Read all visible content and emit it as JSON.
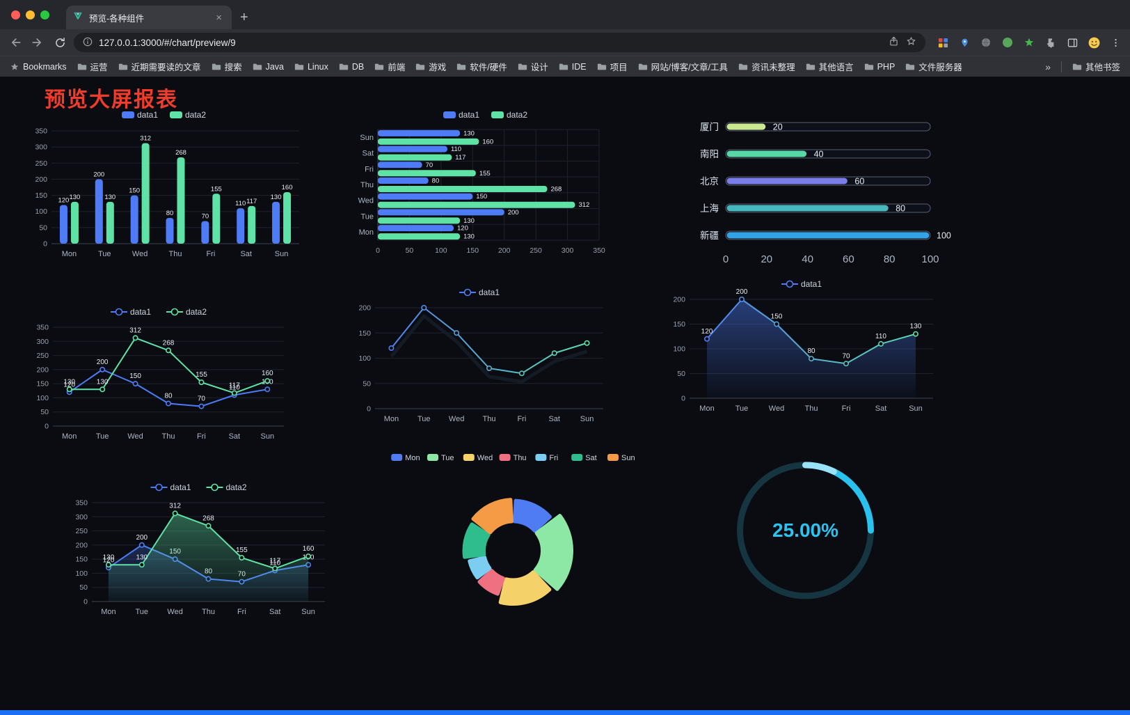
{
  "browser": {
    "tab": {
      "title": "预览-各种组件",
      "close_glyph": "×",
      "new_tab_glyph": "+"
    },
    "address": {
      "url": "127.0.0.1:3000/#/chart/preview/9"
    },
    "bookmarks": {
      "first": "Bookmarks",
      "items": [
        "运营",
        "近期需要读的文章",
        "搜索",
        "Java",
        "Linux",
        "DB",
        "前端",
        "游戏",
        "软件/硬件",
        "设计",
        "IDE",
        "项目",
        "网站/博客/文章/工具",
        "资讯未整理",
        "其他语言",
        "PHP",
        "文件服务器"
      ],
      "overflow_glyph": "»",
      "other": "其他书签"
    }
  },
  "page": {
    "title": "预览大屏报表",
    "title_color": "#f13b2b",
    "background": "#0a0c12",
    "bottom_bar_color": "#1c6ef3"
  },
  "chart_data": [
    {
      "id": "c1",
      "type": "bar",
      "categories": [
        "Mon",
        "Tue",
        "Wed",
        "Thu",
        "Fri",
        "Sat",
        "Sun"
      ],
      "ylim": [
        0,
        350
      ],
      "ytick": 50,
      "value_labels": true,
      "series": [
        {
          "name": "data1",
          "color": "#4d7cf6",
          "values": [
            120,
            200,
            150,
            80,
            70,
            110,
            130
          ]
        },
        {
          "name": "data2",
          "color": "#5fe2a5",
          "values": [
            130,
            130,
            312,
            268,
            155,
            117,
            160
          ]
        }
      ]
    },
    {
      "id": "c2",
      "type": "hbar",
      "categories": [
        "Mon",
        "Tue",
        "Wed",
        "Thu",
        "Fri",
        "Sat",
        "Sun"
      ],
      "xlim": [
        0,
        350
      ],
      "xtick": 50,
      "value_labels": true,
      "series": [
        {
          "name": "data1",
          "color": "#4d7cf6",
          "values": [
            120,
            200,
            150,
            80,
            70,
            110,
            130
          ]
        },
        {
          "name": "data2",
          "color": "#5fe2a5",
          "values": [
            130,
            130,
            312,
            268,
            155,
            117,
            160
          ]
        }
      ]
    },
    {
      "id": "c3",
      "type": "capsule",
      "max": 100,
      "xticks": [
        0,
        20,
        40,
        60,
        80,
        100
      ],
      "rows": [
        {
          "label": "厦门",
          "value": 20,
          "color": "#c9e88f"
        },
        {
          "label": "南阳",
          "value": 40,
          "color": "#56d9a7"
        },
        {
          "label": "北京",
          "value": 60,
          "color": "#7b7de9"
        },
        {
          "label": "上海",
          "value": 80,
          "color": "#46b8bd"
        },
        {
          "label": "新疆",
          "value": 100,
          "color": "#32a4e6"
        }
      ]
    },
    {
      "id": "c4",
      "type": "line",
      "categories": [
        "Mon",
        "Tue",
        "Wed",
        "Thu",
        "Fri",
        "Sat",
        "Sun"
      ],
      "ylim": [
        0,
        350
      ],
      "ytick": 50,
      "value_labels": true,
      "series": [
        {
          "name": "data1",
          "color": "#4d7cf6",
          "values": [
            120,
            200,
            150,
            80,
            70,
            110,
            130
          ]
        },
        {
          "name": "data2",
          "color": "#5fe2a5",
          "values": [
            130,
            130,
            312,
            268,
            155,
            117,
            160
          ]
        }
      ]
    },
    {
      "id": "c5",
      "type": "line",
      "categories": [
        "Mon",
        "Tue",
        "Wed",
        "Thu",
        "Fri",
        "Sat",
        "Sun"
      ],
      "ylim": [
        0,
        200
      ],
      "ytick": 50,
      "value_labels": false,
      "shadow": true,
      "series": [
        {
          "name": "data1",
          "color": "#4d7cf6",
          "color2": "#5fe2a5",
          "values": [
            120,
            200,
            150,
            80,
            70,
            110,
            130
          ]
        }
      ]
    },
    {
      "id": "c6",
      "type": "line",
      "categories": [
        "Mon",
        "Tue",
        "Wed",
        "Thu",
        "Fri",
        "Sat",
        "Sun"
      ],
      "ylim": [
        0,
        200
      ],
      "ytick": 50,
      "value_labels": true,
      "series": [
        {
          "name": "data1",
          "color": "#4d7cf6",
          "color2": "#5fe2a5",
          "area": true,
          "values": [
            120,
            200,
            150,
            80,
            70,
            110,
            130
          ]
        }
      ]
    },
    {
      "id": "c7",
      "type": "line",
      "categories": [
        "Mon",
        "Tue",
        "Wed",
        "Thu",
        "Fri",
        "Sat",
        "Sun"
      ],
      "ylim": [
        0,
        350
      ],
      "ytick": 50,
      "value_labels": true,
      "series": [
        {
          "name": "data1",
          "color": "#4d7cf6",
          "area": true,
          "values": [
            120,
            200,
            150,
            80,
            70,
            110,
            130
          ]
        },
        {
          "name": "data2",
          "color": "#5fe2a5",
          "area": true,
          "values": [
            130,
            130,
            312,
            268,
            155,
            117,
            160
          ]
        }
      ]
    },
    {
      "id": "c8",
      "type": "pie",
      "rose": true,
      "items": [
        {
          "label": "Mon",
          "value": 120,
          "color": "#4f7cf3"
        },
        {
          "label": "Tue",
          "value": 200,
          "color": "#8ce8a4"
        },
        {
          "label": "Wed",
          "value": 150,
          "color": "#f5d169"
        },
        {
          "label": "Thu",
          "value": 80,
          "color": "#ef7181"
        },
        {
          "label": "Fri",
          "value": 70,
          "color": "#7ccdf2"
        },
        {
          "label": "Sat",
          "value": 110,
          "color": "#2fbd8e"
        },
        {
          "label": "Sun",
          "value": 130,
          "color": "#f59b45"
        }
      ]
    },
    {
      "id": "c9",
      "type": "gauge",
      "value": 25,
      "max": 100,
      "display": "25.00%",
      "color": "#29c2ee",
      "highlight": "#a5e6f7",
      "track_color": "#153540",
      "text_color": "#2bc3ef"
    }
  ]
}
